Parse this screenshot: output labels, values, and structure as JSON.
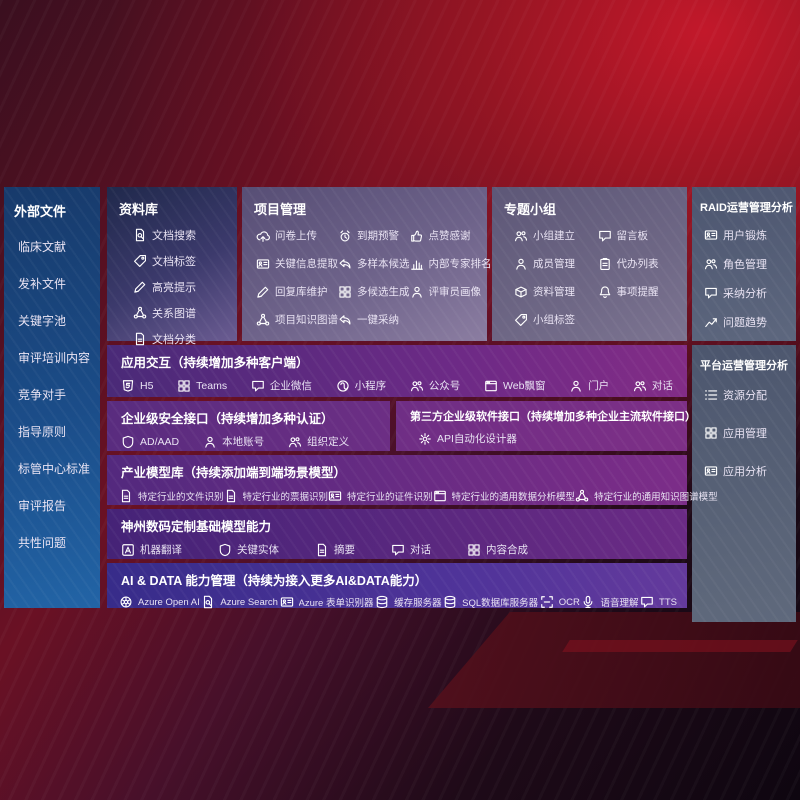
{
  "colors": {
    "background_red": "#8e1322",
    "sidebar_blue": "#1e5494",
    "panel_navy": "#232c50",
    "panel_lavender": "#6e6389",
    "panel_slate": "#58627a",
    "row_purple": "#6c2b85",
    "row_indigo": "#3b2f8e"
  },
  "sidebar": {
    "title": "外部文件",
    "items": [
      "临床文献",
      "发补文件",
      "关键字池",
      "审评培训内容",
      "竞争对手",
      "指导原则",
      "标管中心标准",
      "审评报告",
      "共性问题"
    ]
  },
  "library": {
    "title": "资料库",
    "items": [
      {
        "icon": "doc-search",
        "label": "文档搜索"
      },
      {
        "icon": "tag",
        "label": "文档标签"
      },
      {
        "icon": "pen",
        "label": "高亮提示"
      },
      {
        "icon": "graph",
        "label": "关系图谱"
      },
      {
        "icon": "doc",
        "label": "文档分类"
      }
    ]
  },
  "project": {
    "title": "项目管理",
    "items": [
      {
        "icon": "cloud-upload",
        "label": "问卷上传"
      },
      {
        "icon": "alarm",
        "label": "到期预警"
      },
      {
        "icon": "thumbs-up",
        "label": "点赞感谢"
      },
      {
        "icon": "id-card",
        "label": "关键信息提取"
      },
      {
        "icon": "reply-arrow",
        "label": "多样本候选"
      },
      {
        "icon": "bar-chart",
        "label": "内部专家排名"
      },
      {
        "icon": "pen",
        "label": "回复库维护"
      },
      {
        "icon": "grid",
        "label": "多候选生成"
      },
      {
        "icon": "person",
        "label": "评审员画像"
      },
      {
        "icon": "graph",
        "label": "项目知识图谱"
      },
      {
        "icon": "reply-arrow",
        "label": "一键采纳"
      }
    ]
  },
  "topic": {
    "title": "专题小组",
    "items": [
      {
        "icon": "people",
        "label": "小组建立"
      },
      {
        "icon": "speech",
        "label": "留言板"
      },
      {
        "icon": "person",
        "label": "成员管理"
      },
      {
        "icon": "clipboard",
        "label": "代办列表"
      },
      {
        "icon": "box",
        "label": "资料管理"
      },
      {
        "icon": "bell",
        "label": "事项提醒"
      },
      {
        "icon": "tag",
        "label": "小组标签"
      }
    ]
  },
  "raid": {
    "title": "RAID运营管理分析",
    "items": [
      {
        "icon": "id-card",
        "label": "用户锻炼"
      },
      {
        "icon": "people",
        "label": "角色管理"
      },
      {
        "icon": "speech",
        "label": "采纳分析"
      },
      {
        "icon": "trend",
        "label": "问题趋势"
      }
    ]
  },
  "platform": {
    "title": "平台运营管理分析",
    "items": [
      {
        "icon": "list",
        "label": "资源分配"
      },
      {
        "icon": "grid",
        "label": "应用管理"
      },
      {
        "icon": "id-card",
        "label": "应用分析"
      }
    ]
  },
  "rows": {
    "interact": {
      "title": "应用交互（持续增加多种客户端）",
      "items": [
        {
          "icon": "h5",
          "label": "H5"
        },
        {
          "icon": "grid",
          "label": "Teams"
        },
        {
          "icon": "speech",
          "label": "企业微信"
        },
        {
          "icon": "mini-program",
          "label": "小程序"
        },
        {
          "icon": "people",
          "label": "公众号"
        },
        {
          "icon": "window",
          "label": "Web飘窗"
        },
        {
          "icon": "person",
          "label": "门户"
        },
        {
          "icon": "people",
          "label": "对话"
        }
      ]
    },
    "security": {
      "title": "企业级安全接口（持续增加多种认证）",
      "items": [
        {
          "icon": "shield",
          "label": "AD/AAD"
        },
        {
          "icon": "person",
          "label": "本地账号"
        },
        {
          "icon": "people",
          "label": "组织定义"
        }
      ]
    },
    "third": {
      "title": "第三方企业级软件接口（持续增加多种企业主流软件接口）",
      "items": [
        {
          "icon": "gear",
          "label": "API自动化设计器"
        }
      ]
    },
    "industry": {
      "title": "产业模型库（持续添加端到端场景模型）",
      "items": [
        {
          "icon": "doc",
          "label": "特定行业的文件识别"
        },
        {
          "icon": "doc",
          "label": "特定行业的票据识别"
        },
        {
          "icon": "id-card",
          "label": "特定行业的证件识别"
        },
        {
          "icon": "window",
          "label": "特定行业的通用数据分析模型"
        },
        {
          "icon": "graph",
          "label": "特定行业的通用知识图谱模型"
        }
      ]
    },
    "digital": {
      "title": "神州数码定制基础模型能力",
      "items": [
        {
          "icon": "translate",
          "label": "机器翻译"
        },
        {
          "icon": "shield",
          "label": "关键实体"
        },
        {
          "icon": "doc",
          "label": "摘要"
        },
        {
          "icon": "speech",
          "label": "对话"
        },
        {
          "icon": "grid",
          "label": "内容合成"
        }
      ]
    },
    "aidata": {
      "title": "AI & DATA 能力管理（持续为接入更多AI&DATA能力）",
      "items": [
        {
          "icon": "openai",
          "label": "Azure Open AI"
        },
        {
          "icon": "doc-search",
          "label": "Azure Search"
        },
        {
          "icon": "id-card",
          "label": "Azure 表单识别器"
        },
        {
          "icon": "database",
          "label": "缓存服务器"
        },
        {
          "icon": "database",
          "label": "SQL数据库服务器"
        },
        {
          "icon": "ocr",
          "label": "OCR"
        },
        {
          "icon": "mic",
          "label": "语音理解"
        },
        {
          "icon": "speech",
          "label": "TTS"
        }
      ]
    }
  }
}
